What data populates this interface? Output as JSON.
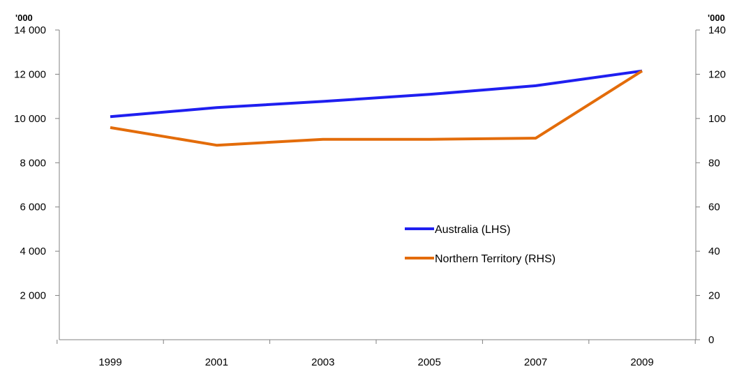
{
  "chart_data": {
    "type": "line",
    "x": [
      "1999",
      "2001",
      "2003",
      "2005",
      "2007",
      "2009"
    ],
    "series": [
      {
        "name": "Australia (LHS)",
        "axis": "left",
        "color": "#1f1ff0",
        "values": [
          10080,
          10490,
          10770,
          11090,
          11480,
          12150
        ]
      },
      {
        "name": "Northern Territory (RHS)",
        "axis": "right",
        "color": "#e36c0a",
        "values": [
          95.9,
          87.9,
          90.6,
          90.6,
          91.1,
          121.5
        ]
      }
    ],
    "left_axis": {
      "unit": "'000",
      "ylim": [
        0,
        14000
      ],
      "ticks": [
        2000,
        4000,
        6000,
        8000,
        10000,
        12000,
        14000
      ],
      "tick_labels": [
        "2 000",
        "4 000",
        "6 000",
        "8 000",
        "10 000",
        "12 000",
        "14 000"
      ]
    },
    "right_axis": {
      "unit": "'000",
      "ylim": [
        0,
        140
      ],
      "ticks": [
        0,
        20,
        40,
        60,
        80,
        100,
        120,
        140
      ],
      "tick_labels": [
        "0",
        "20",
        "40",
        "60",
        "80",
        "100",
        "120",
        "140"
      ]
    },
    "grid": false,
    "legend_position": "center-right"
  }
}
